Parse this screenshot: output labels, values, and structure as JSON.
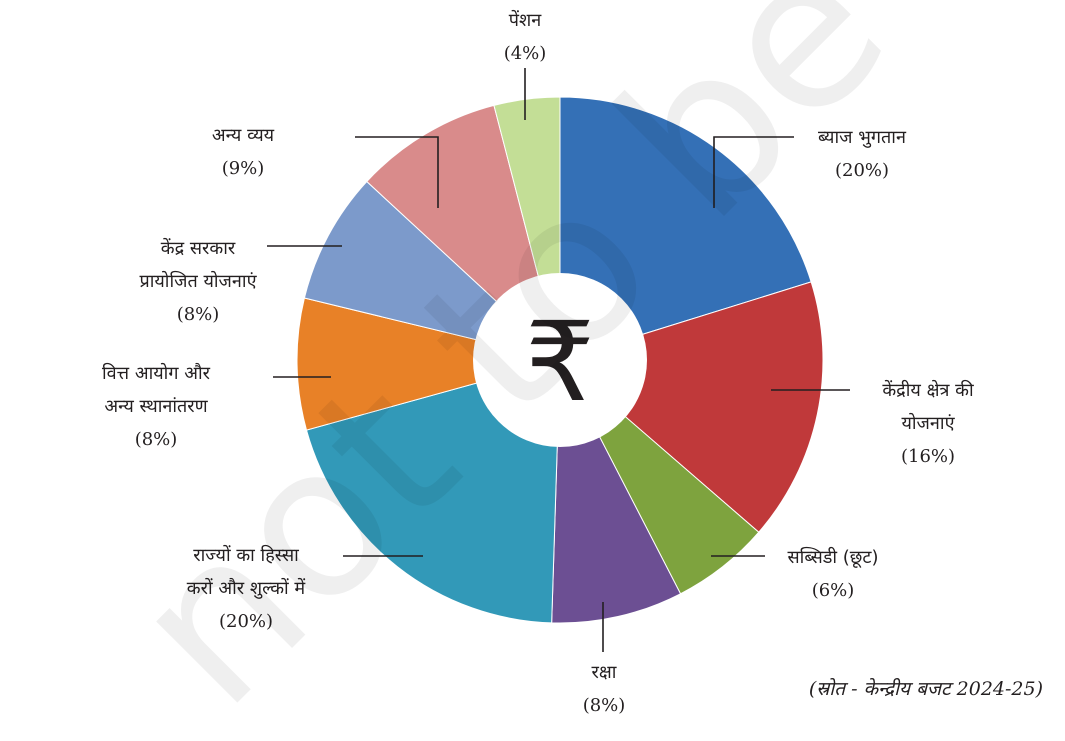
{
  "chart_data": {
    "type": "pie",
    "categories": [
      "ब्याज भुगतान",
      "केंद्रीय क्षेत्र की योजनाएं",
      "सब्सिडी (छूट)",
      "रक्षा",
      "राज्यों का हिस्सा करों और शुल्कों में",
      "वित्त आयोग और अन्य स्थानांतरण",
      "केंद्र सरकार प्रायोजित योजनाएं",
      "अन्य व्यय",
      "पेंशन"
    ],
    "values": [
      20,
      16,
      6,
      8,
      20,
      8,
      8,
      9,
      4
    ],
    "label_lines": [
      [
        "ब्याज भुगतान"
      ],
      [
        "केंद्रीय क्षेत्र की",
        "योजनाएं"
      ],
      [
        "सब्सिडी (छूट)"
      ],
      [
        "रक्षा"
      ],
      [
        "राज्यों का हिस्सा",
        "करों और शुल्कों में"
      ],
      [
        "वित्त आयोग और",
        "अन्य स्थानांतरण"
      ],
      [
        "केंद्र सरकार",
        "प्रायोजित योजनाएं"
      ],
      [
        "अन्य व्यय"
      ],
      [
        "पेंशन"
      ]
    ],
    "percent_labels": [
      "(20%)",
      "(16%)",
      "(6%)",
      "(8%)",
      "(20%)",
      "(8%)",
      "(8%)",
      "(9%)",
      "(4%)"
    ],
    "colors": [
      "#3470b6",
      "#c0393a",
      "#7ea33e",
      "#6c4f93",
      "#3299b8",
      "#e88127",
      "#7c9acb",
      "#d98b8b",
      "#c3de96"
    ],
    "center_symbol": "₹",
    "donut": true,
    "start": "top, clockwise"
  },
  "source_note": "(स्रोत - केन्द्रीय बजट 2024-25)",
  "watermark": "not to be"
}
